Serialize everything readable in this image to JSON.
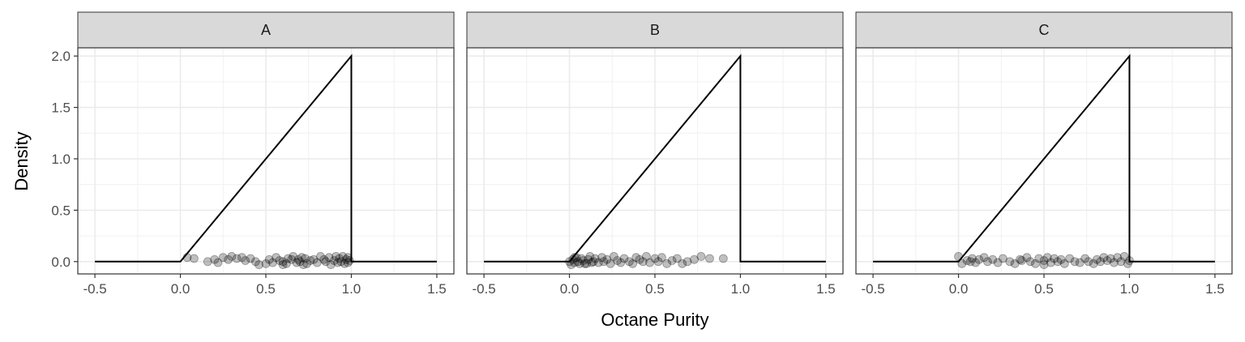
{
  "chart_data": {
    "type": "line",
    "xlabel": "Octane Purity",
    "ylabel": "Density",
    "xlim": [
      -0.6,
      1.6
    ],
    "ylim": [
      -0.12,
      2.08
    ],
    "x_ticks": [
      "-0.5",
      "0.0",
      "0.5",
      "1.0",
      "1.5"
    ],
    "y_ticks": [
      "0.0",
      "0.5",
      "1.0",
      "1.5",
      "2.0"
    ],
    "x_tick_values": [
      -0.5,
      0.0,
      0.5,
      1.0,
      1.5
    ],
    "y_tick_values": [
      0.0,
      0.5,
      1.0,
      1.5,
      2.0
    ],
    "grid": true,
    "line_color": "#000000",
    "point_color": "#000000",
    "point_opacity": 0.25,
    "density_curve": {
      "x": [
        -0.5,
        0.0,
        1.0,
        1.0,
        1.5
      ],
      "y": [
        0.0,
        0.0,
        2.0,
        0.0,
        0.0
      ]
    },
    "facets": [
      {
        "label": "A",
        "points": [
          [
            0.04,
            0.04
          ],
          [
            0.08,
            0.03
          ],
          [
            0.16,
            0.0
          ],
          [
            0.2,
            0.02
          ],
          [
            0.22,
            -0.01
          ],
          [
            0.25,
            0.04
          ],
          [
            0.28,
            0.02
          ],
          [
            0.3,
            0.05
          ],
          [
            0.33,
            0.03
          ],
          [
            0.36,
            0.04
          ],
          [
            0.38,
            0.01
          ],
          [
            0.41,
            0.03
          ],
          [
            0.44,
            0.0
          ],
          [
            0.46,
            -0.03
          ],
          [
            0.5,
            -0.02
          ],
          [
            0.52,
            0.02
          ],
          [
            0.54,
            -0.01
          ],
          [
            0.56,
            0.04
          ],
          [
            0.58,
            0.01
          ],
          [
            0.6,
            0.0
          ],
          [
            0.62,
            -0.02
          ],
          [
            0.63,
            0.03
          ],
          [
            0.65,
            0.02
          ],
          [
            0.66,
            0.05
          ],
          [
            0.68,
            -0.01
          ],
          [
            0.69,
            0.02
          ],
          [
            0.7,
            0.0
          ],
          [
            0.71,
            0.04
          ],
          [
            0.73,
            0.03
          ],
          [
            0.74,
            -0.02
          ],
          [
            0.76,
            0.01
          ],
          [
            0.78,
            0.02
          ],
          [
            0.8,
            -0.01
          ],
          [
            0.82,
            0.05
          ],
          [
            0.84,
            0.02
          ],
          [
            0.85,
            0.0
          ],
          [
            0.87,
            0.04
          ],
          [
            0.88,
            -0.03
          ],
          [
            0.9,
            0.01
          ],
          [
            0.91,
            0.05
          ],
          [
            0.92,
            -0.01
          ],
          [
            0.93,
            0.03
          ],
          [
            0.94,
            0.0
          ],
          [
            0.95,
            0.05
          ],
          [
            0.96,
            -0.02
          ],
          [
            0.97,
            0.02
          ],
          [
            0.98,
            0.04
          ],
          [
            0.98,
            -0.01
          ],
          [
            0.99,
            0.01
          ],
          [
            0.6,
            -0.03
          ],
          [
            0.72,
            -0.03
          ]
        ]
      },
      {
        "label": "B",
        "points": [
          [
            0.0,
            0.0
          ],
          [
            0.01,
            -0.03
          ],
          [
            0.02,
            0.02
          ],
          [
            0.03,
            -0.01
          ],
          [
            0.04,
            0.04
          ],
          [
            0.05,
            0.0
          ],
          [
            0.06,
            -0.02
          ],
          [
            0.07,
            0.03
          ],
          [
            0.08,
            0.01
          ],
          [
            0.1,
            -0.02
          ],
          [
            0.11,
            0.02
          ],
          [
            0.12,
            0.05
          ],
          [
            0.14,
            0.0
          ],
          [
            0.15,
            0.03
          ],
          [
            0.17,
            -0.01
          ],
          [
            0.19,
            0.04
          ],
          [
            0.2,
            0.0
          ],
          [
            0.22,
            0.02
          ],
          [
            0.24,
            -0.02
          ],
          [
            0.26,
            0.05
          ],
          [
            0.28,
            0.01
          ],
          [
            0.3,
            -0.01
          ],
          [
            0.32,
            0.03
          ],
          [
            0.35,
            0.0
          ],
          [
            0.37,
            -0.02
          ],
          [
            0.39,
            0.04
          ],
          [
            0.41,
            0.02
          ],
          [
            0.43,
            0.0
          ],
          [
            0.45,
            0.05
          ],
          [
            0.47,
            -0.01
          ],
          [
            0.5,
            0.03
          ],
          [
            0.52,
            0.0
          ],
          [
            0.54,
            0.04
          ],
          [
            0.57,
            -0.02
          ],
          [
            0.6,
            0.01
          ],
          [
            0.63,
            0.03
          ],
          [
            0.66,
            -0.02
          ],
          [
            0.69,
            0.0
          ],
          [
            0.73,
            0.02
          ],
          [
            0.77,
            0.05
          ],
          [
            0.82,
            0.03
          ],
          [
            0.9,
            0.03
          ],
          [
            0.03,
            0.04
          ],
          [
            0.09,
            -0.02
          ],
          [
            0.13,
            -0.01
          ]
        ]
      },
      {
        "label": "C",
        "points": [
          [
            0.0,
            0.05
          ],
          [
            0.02,
            -0.02
          ],
          [
            0.05,
            0.01
          ],
          [
            0.08,
            0.03
          ],
          [
            0.1,
            -0.01
          ],
          [
            0.12,
            0.02
          ],
          [
            0.15,
            0.04
          ],
          [
            0.17,
            0.0
          ],
          [
            0.2,
            0.02
          ],
          [
            0.23,
            -0.01
          ],
          [
            0.26,
            0.03
          ],
          [
            0.3,
            0.0
          ],
          [
            0.33,
            -0.02
          ],
          [
            0.36,
            0.02
          ],
          [
            0.4,
            0.04
          ],
          [
            0.42,
            0.0
          ],
          [
            0.45,
            -0.02
          ],
          [
            0.47,
            0.03
          ],
          [
            0.5,
            0.01
          ],
          [
            0.52,
            0.04
          ],
          [
            0.54,
            -0.01
          ],
          [
            0.56,
            0.03
          ],
          [
            0.58,
            0.0
          ],
          [
            0.6,
            0.02
          ],
          [
            0.62,
            -0.02
          ],
          [
            0.65,
            0.03
          ],
          [
            0.68,
            0.0
          ],
          [
            0.71,
            -0.01
          ],
          [
            0.74,
            0.03
          ],
          [
            0.76,
            0.0
          ],
          [
            0.79,
            -0.02
          ],
          [
            0.81,
            0.02
          ],
          [
            0.83,
            0.0
          ],
          [
            0.85,
            0.04
          ],
          [
            0.87,
            0.01
          ],
          [
            0.89,
            0.03
          ],
          [
            0.91,
            -0.01
          ],
          [
            0.93,
            0.04
          ],
          [
            0.95,
            0.0
          ],
          [
            0.97,
            0.05
          ],
          [
            0.99,
            -0.02
          ],
          [
            1.0,
            0.01
          ],
          [
            0.07,
            0.0
          ],
          [
            0.37,
            0.01
          ],
          [
            0.5,
            -0.03
          ]
        ]
      }
    ]
  }
}
